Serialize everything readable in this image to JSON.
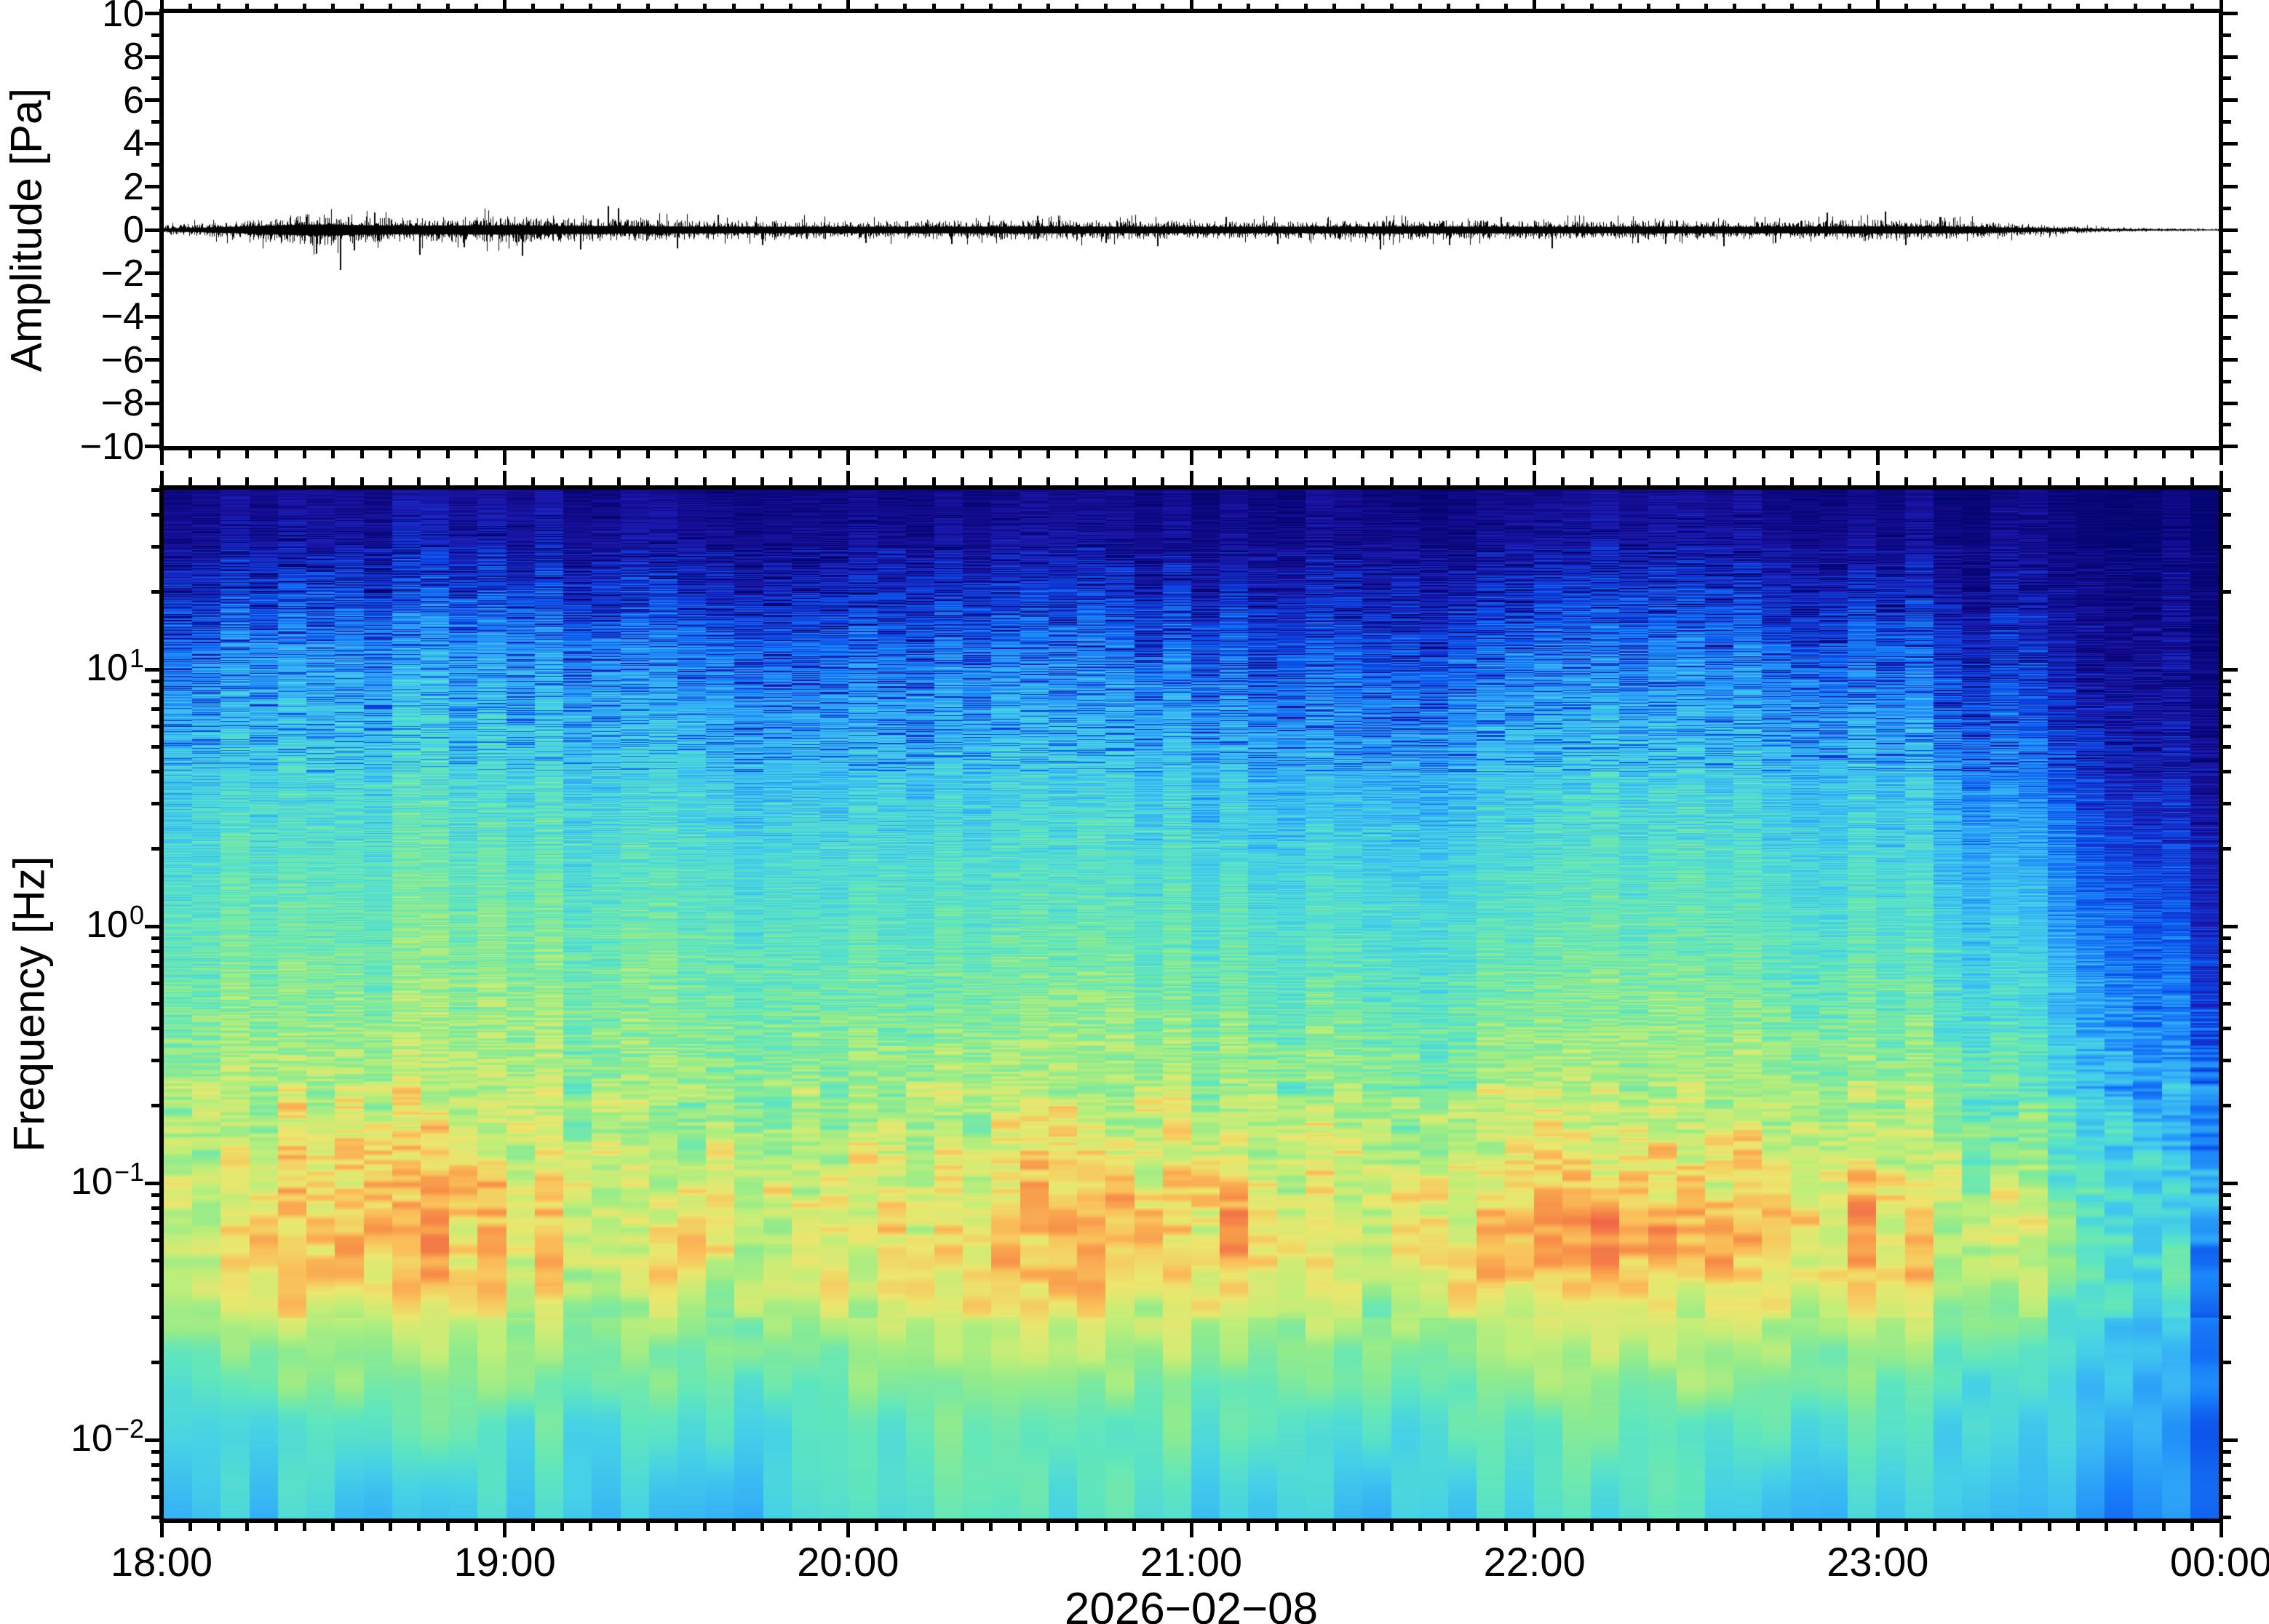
{
  "figure": {
    "background": "#ffffff",
    "frame_color": "#000000"
  },
  "top_panel": {
    "ylabel": "Amplitude [Pa]",
    "ylim": [
      -10,
      10
    ],
    "ytick_major_step": 2,
    "ytick_minor_step": 1,
    "ytick_values": [
      10,
      8,
      6,
      4,
      2,
      0,
      -2,
      -4,
      -6,
      -8,
      -10
    ],
    "ytick_labels": [
      "10",
      "8",
      "6",
      "4",
      "2",
      "0",
      "−2",
      "−4",
      "−6",
      "−8",
      "−10"
    ]
  },
  "bottom_panel": {
    "ylabel": "Frequency [Hz]",
    "yscale": "log",
    "freq_range_hz": [
      0.005,
      50
    ],
    "ytick_decades": [
      {
        "value": 10,
        "base": "10",
        "exp": "1"
      },
      {
        "value": 1,
        "base": "10",
        "exp": "0"
      },
      {
        "value": 0.1,
        "base": "10",
        "exp": "−1"
      },
      {
        "value": 0.01,
        "base": "10",
        "exp": "−2"
      }
    ]
  },
  "time_axis": {
    "start": "18:00",
    "end": "00:00",
    "span_hours": 6,
    "hour_labels": [
      "18:00",
      "19:00",
      "20:00",
      "21:00",
      "22:00",
      "23:00",
      "00:00"
    ],
    "minor_interval_minutes": 5,
    "date_label": "2026−02−08"
  },
  "chart_data": [
    {
      "type": "line",
      "title": "",
      "xlabel": "2026−02−08",
      "ylabel": "Amplitude [Pa]",
      "ylim": [
        -10,
        10
      ],
      "x_time_range": [
        "18:00",
        "00:00"
      ],
      "series": [
        {
          "name": "infrasound-pressure-waveform",
          "unit": "Pa",
          "envelope_x_hours": [
            0,
            0.1,
            0.2,
            0.3,
            0.4,
            0.5,
            0.6,
            0.7,
            0.85,
            1.0,
            1.1,
            1.25,
            1.4,
            1.6,
            1.8,
            2.0,
            2.2,
            2.4,
            2.6,
            2.8,
            3.0,
            3.2,
            3.4,
            3.6,
            3.8,
            4.0,
            4.2,
            4.4,
            4.6,
            4.8,
            5.0,
            5.15,
            5.3,
            5.45,
            5.6,
            5.75,
            5.9,
            6.0
          ],
          "envelope_pa": [
            0.15,
            0.2,
            0.28,
            0.38,
            0.48,
            0.5,
            0.42,
            0.38,
            0.4,
            0.42,
            0.38,
            0.36,
            0.33,
            0.3,
            0.29,
            0.28,
            0.29,
            0.3,
            0.31,
            0.3,
            0.29,
            0.28,
            0.3,
            0.31,
            0.3,
            0.29,
            0.28,
            0.3,
            0.29,
            0.3,
            0.32,
            0.3,
            0.26,
            0.18,
            0.1,
            0.06,
            0.04,
            0.035
          ],
          "spikes": [
            [
              0.45,
              -1.1
            ],
            [
              0.52,
              -1.85
            ],
            [
              0.56,
              -0.95
            ],
            [
              0.62,
              0.8
            ],
            [
              0.75,
              -1.15
            ],
            [
              0.88,
              -0.8
            ],
            [
              1.05,
              -1.2
            ],
            [
              1.22,
              -0.9
            ],
            [
              1.3,
              1.1
            ],
            [
              1.33,
              1.0
            ],
            [
              1.5,
              -0.85
            ],
            [
              1.62,
              0.7
            ],
            [
              1.75,
              -0.7
            ],
            [
              2.05,
              -0.6
            ],
            [
              2.3,
              -0.65
            ],
            [
              2.55,
              0.65
            ],
            [
              2.75,
              -0.6
            ],
            [
              2.9,
              -0.75
            ],
            [
              3.1,
              0.6
            ],
            [
              3.25,
              -0.65
            ],
            [
              3.55,
              -0.9
            ],
            [
              3.75,
              -0.7
            ],
            [
              3.9,
              0.6
            ],
            [
              4.05,
              -0.85
            ],
            [
              4.3,
              -0.6
            ],
            [
              4.55,
              -0.75
            ],
            [
              4.7,
              -0.6
            ],
            [
              4.85,
              0.8
            ],
            [
              5.02,
              0.85
            ],
            [
              5.08,
              -0.7
            ],
            [
              5.18,
              0.6
            ]
          ]
        }
      ]
    },
    {
      "type": "heatmap",
      "title": "",
      "xlabel": "2026−02−08",
      "ylabel": "Frequency [Hz]",
      "yscale": "log",
      "ylim_hz": [
        0.005,
        50
      ],
      "x_hours_after_18": [
        0,
        0.5,
        1,
        1.5,
        2,
        2.5,
        3,
        3.5,
        4,
        4.5,
        5,
        5.3,
        5.6,
        6
      ],
      "y_freq_hz": [
        50,
        30,
        20,
        12,
        7,
        4,
        2,
        1,
        0.5,
        0.25,
        0.12,
        0.07,
        0.045,
        0.025,
        0.012,
        0.005
      ],
      "values_rel_power": [
        [
          0.05,
          0.08,
          0.07,
          0.05,
          0.05,
          0.05,
          0.04,
          0.04,
          0.05,
          0.05,
          0.05,
          0.04,
          0.02,
          0.01
        ],
        [
          0.09,
          0.14,
          0.12,
          0.1,
          0.09,
          0.1,
          0.08,
          0.08,
          0.1,
          0.09,
          0.09,
          0.06,
          0.03,
          0.01
        ],
        [
          0.16,
          0.23,
          0.2,
          0.17,
          0.16,
          0.18,
          0.15,
          0.13,
          0.17,
          0.16,
          0.16,
          0.1,
          0.05,
          0.02
        ],
        [
          0.26,
          0.34,
          0.31,
          0.28,
          0.26,
          0.28,
          0.25,
          0.21,
          0.27,
          0.26,
          0.26,
          0.18,
          0.09,
          0.03
        ],
        [
          0.34,
          0.41,
          0.39,
          0.36,
          0.34,
          0.36,
          0.33,
          0.29,
          0.35,
          0.34,
          0.34,
          0.25,
          0.14,
          0.05
        ],
        [
          0.41,
          0.47,
          0.45,
          0.43,
          0.41,
          0.43,
          0.4,
          0.37,
          0.42,
          0.41,
          0.41,
          0.32,
          0.2,
          0.08
        ],
        [
          0.47,
          0.52,
          0.5,
          0.48,
          0.47,
          0.48,
          0.46,
          0.43,
          0.47,
          0.47,
          0.47,
          0.38,
          0.26,
          0.12
        ],
        [
          0.51,
          0.56,
          0.55,
          0.53,
          0.51,
          0.53,
          0.51,
          0.48,
          0.52,
          0.51,
          0.52,
          0.43,
          0.31,
          0.16
        ],
        [
          0.56,
          0.61,
          0.59,
          0.57,
          0.56,
          0.58,
          0.56,
          0.53,
          0.57,
          0.56,
          0.57,
          0.49,
          0.37,
          0.21
        ],
        [
          0.61,
          0.67,
          0.64,
          0.61,
          0.61,
          0.64,
          0.63,
          0.59,
          0.63,
          0.62,
          0.63,
          0.55,
          0.44,
          0.27
        ],
        [
          0.67,
          0.77,
          0.71,
          0.67,
          0.68,
          0.73,
          0.73,
          0.66,
          0.73,
          0.71,
          0.72,
          0.63,
          0.51,
          0.33
        ],
        [
          0.71,
          0.86,
          0.78,
          0.71,
          0.74,
          0.83,
          0.81,
          0.71,
          0.83,
          0.79,
          0.79,
          0.69,
          0.56,
          0.37
        ],
        [
          0.69,
          0.83,
          0.75,
          0.69,
          0.73,
          0.79,
          0.77,
          0.69,
          0.81,
          0.77,
          0.75,
          0.65,
          0.53,
          0.35
        ],
        [
          0.59,
          0.67,
          0.63,
          0.59,
          0.63,
          0.67,
          0.65,
          0.59,
          0.67,
          0.65,
          0.63,
          0.57,
          0.47,
          0.31
        ],
        [
          0.47,
          0.53,
          0.51,
          0.49,
          0.53,
          0.56,
          0.53,
          0.49,
          0.55,
          0.53,
          0.51,
          0.47,
          0.41,
          0.27
        ],
        [
          0.39,
          0.43,
          0.43,
          0.41,
          0.45,
          0.49,
          0.46,
          0.41,
          0.47,
          0.45,
          0.43,
          0.39,
          0.35,
          0.23
        ]
      ],
      "colormap": {
        "stops": [
          [
            0.0,
            "#040570"
          ],
          [
            0.06,
            "#140a8c"
          ],
          [
            0.13,
            "#1c1cb4"
          ],
          [
            0.21,
            "#0a46e6"
          ],
          [
            0.29,
            "#1982fa"
          ],
          [
            0.37,
            "#37b4f5"
          ],
          [
            0.44,
            "#46d2e6"
          ],
          [
            0.52,
            "#5fe6be"
          ],
          [
            0.6,
            "#91eb8c"
          ],
          [
            0.67,
            "#c3ee78"
          ],
          [
            0.74,
            "#ebe66e"
          ],
          [
            0.8,
            "#fac05a"
          ],
          [
            0.87,
            "#f79148"
          ],
          [
            0.94,
            "#ef6048"
          ],
          [
            1.0,
            "#e13c3c"
          ]
        ]
      }
    }
  ]
}
